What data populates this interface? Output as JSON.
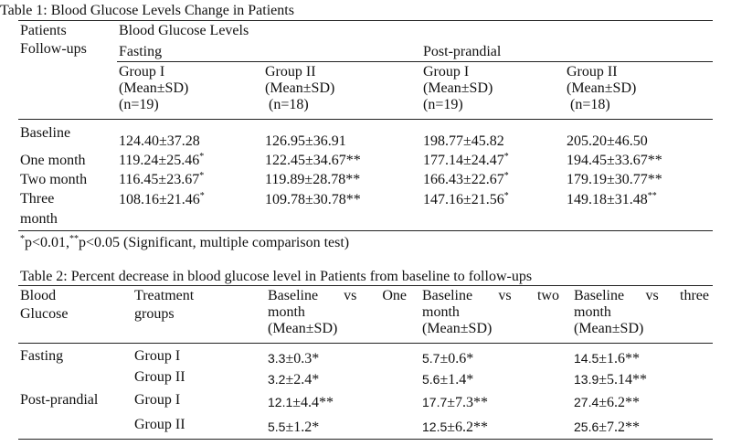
{
  "table1": {
    "caption": "Table 1: Blood Glucose Levels Change in Patients",
    "col_patients_1": "Patients",
    "col_patients_2": "Follow-ups",
    "col_bgl": "Blood Glucose Levels",
    "col_fasting": "Fasting",
    "col_postprandial": "Post-prandial",
    "groups": [
      {
        "name": "Group I",
        "stat": "(Mean±SD)",
        "n": "(n=19)"
      },
      {
        "name": "Group II",
        "stat": "(Mean±SD)",
        "n": " (n=18)"
      },
      {
        "name": "Group I",
        "stat": "(Mean±SD)",
        "n": "(n=19)"
      },
      {
        "name": "Group II",
        "stat": "(Mean±SD)",
        "n": " (n=18)"
      }
    ],
    "rows": [
      {
        "label": "Baseline",
        "label2": "",
        "values": [
          {
            "v": "124.40±37.28",
            "s": ""
          },
          {
            "v": "126.95±36.91",
            "s": ""
          },
          {
            "v": "198.77±45.82",
            "s": ""
          },
          {
            "v": "205.20±46.50",
            "s": ""
          }
        ]
      },
      {
        "label": "One month",
        "label2": "",
        "values": [
          {
            "v": "119.24±25.46",
            "s": "*"
          },
          {
            "v": "122.45±34.67**",
            "s": ""
          },
          {
            "v": "177.14±24.47",
            "s": "*"
          },
          {
            "v": "194.45±33.67**",
            "s": ""
          }
        ]
      },
      {
        "label": "Two month",
        "label2": "",
        "values": [
          {
            "v": "116.45±23.67",
            "s": "*"
          },
          {
            "v": "119.89±28.78**",
            "s": ""
          },
          {
            "v": "166.43±22.67",
            "s": "*"
          },
          {
            "v": "179.19±30.77**",
            "s": ""
          }
        ]
      },
      {
        "label": "Three",
        "label2": "month",
        "values": [
          {
            "v": "108.16±21.46",
            "s": "*"
          },
          {
            "v": "109.78±30.78**",
            "s": ""
          },
          {
            "v": "147.16±21.56",
            "s": "*"
          },
          {
            "v": "149.18±31.48",
            "s": "**"
          }
        ]
      }
    ],
    "footnote": {
      "star1": "*",
      "text1": "p<0.01,",
      "star2": "**",
      "text2": "p<0.05 (Significant, multiple comparison test)"
    }
  },
  "table2": {
    "caption": "Table 2: Percent decrease in blood glucose level in Patients from baseline to follow-ups",
    "col_blood_1": "Blood",
    "col_blood_2": "Glucose",
    "col_treat_1": "Treatment",
    "col_treat_2": "groups",
    "headers": [
      {
        "w1": "Baseline",
        "w2": "vs",
        "w3": "One",
        "line2": "month",
        "line3": "(Mean±SD)"
      },
      {
        "w1": "Baseline",
        "w2": "vs",
        "w3": "two",
        "line2": "month",
        "line3": "(Mean±SD)"
      },
      {
        "w1": "Baseline",
        "w2": "vs",
        "w3": "three",
        "line2": "month",
        "line3": "(Mean±SD)"
      }
    ],
    "rows": [
      {
        "glucose": "Fasting",
        "group": "Group I",
        "values": [
          {
            "a": "3.3",
            "b": "±0.3*"
          },
          {
            "a": "5.7",
            "b": "±0.6*"
          },
          {
            "a": "14.5",
            "b": "±1.6**"
          }
        ]
      },
      {
        "glucose": "",
        "group": "Group II",
        "values": [
          {
            "a": "3.2",
            "b": "±2.4*"
          },
          {
            "a": "5.6",
            "b": "±1.4*"
          },
          {
            "a": "13.9",
            "b": "±5.14**"
          }
        ]
      },
      {
        "glucose": "Post-prandial",
        "group": "Group I",
        "values": [
          {
            "a": "12.1",
            "b": "±4.4**"
          },
          {
            "a": "17.7",
            "b": "±7.3**"
          },
          {
            "a": "27.4",
            "b": "±6.2**"
          }
        ]
      },
      {
        "glucose": "",
        "group": "Group II",
        "values": [
          {
            "a": "5.5",
            "b": "±1.2*"
          },
          {
            "a": "12.5",
            "b": "±6.2**"
          },
          {
            "a": "25.6",
            "b": "±7.2**"
          }
        ]
      }
    ]
  }
}
